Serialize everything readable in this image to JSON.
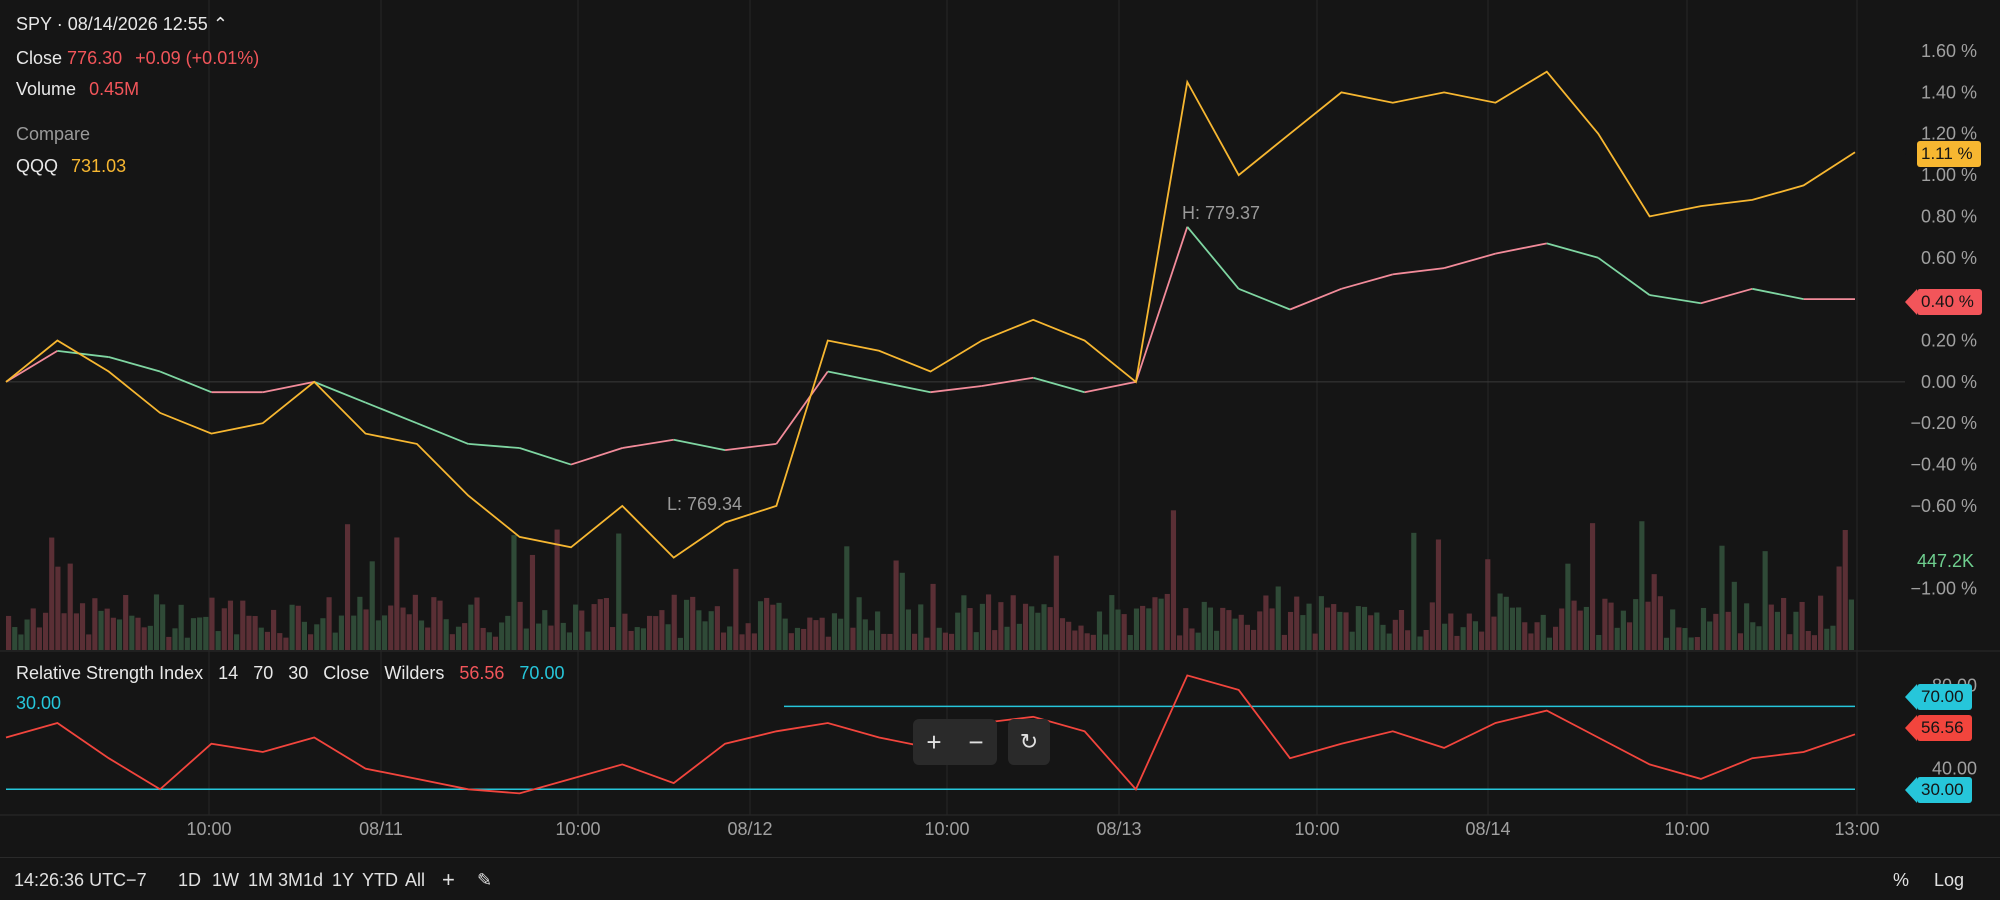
{
  "header": {
    "symbol_line": "SPY · 08/14/2026 12:55 ⌃",
    "close_label": "Close",
    "close_value": "776.30",
    "close_change": "+0.09 (+0.01%)",
    "volume_label": "Volume",
    "volume_value": "0.45M",
    "compare_label": "Compare",
    "compare_symbol": "QQQ",
    "compare_value": "731.03"
  },
  "annotations": {
    "high": "H:  779.37",
    "low": "L:  769.34"
  },
  "rsi": {
    "title": "Relative Strength Index",
    "params": [
      "14",
      "70",
      "30",
      "Close",
      "Wilders"
    ],
    "value": "56.56",
    "upper": "70.00",
    "lower": "30.00",
    "axis_ticks": [
      "80.00",
      "40.00"
    ],
    "tag_value": "56.56",
    "tag_upper": "70.00",
    "tag_lower": "30.00"
  },
  "tags": {
    "qqq_pct": "1.11 %",
    "spy_pct": "0.40 %",
    "volume": "447.2K"
  },
  "controls": {
    "zoom_in": "+",
    "zoom_out": "−",
    "reset": "↻"
  },
  "footer": {
    "time": "14:26:36 UTC−7",
    "ranges": [
      "1D",
      "1W",
      "1M",
      "3M",
      "1d",
      "1Y",
      "YTD",
      "All"
    ],
    "active_range": "1W",
    "add": "+",
    "draw_icon": "✎",
    "pct": "%",
    "log": "Log"
  },
  "colors": {
    "spy_up": "#f28b9a",
    "spy_down": "#7fd6a2",
    "qqq": "#f7b731",
    "rsi": "#f2453d",
    "rsi_band": "#26c6da",
    "vol_up": "#2f4a37",
    "vol_down": "#5a2f35"
  },
  "chart_data": {
    "type": "line",
    "x_labels": [
      "10:00",
      "08/11",
      "10:00",
      "08/12",
      "10:00",
      "08/13",
      "10:00",
      "08/14",
      "10:00",
      "13:00"
    ],
    "y_ticks": [
      "1.60 %",
      "1.40 %",
      "1.20 %",
      "1.00 %",
      "0.80 %",
      "0.60 %",
      "0.40 %",
      "0.20 %",
      "0.00 %",
      "−0.20 %",
      "−0.40 %",
      "−0.60 %",
      "−1.00 %"
    ],
    "ylim": [
      -1.2,
      1.75
    ],
    "series": [
      {
        "name": "SPY",
        "values": [
          0.0,
          0.15,
          0.12,
          0.05,
          -0.05,
          -0.05,
          0.0,
          -0.1,
          -0.2,
          -0.3,
          -0.32,
          -0.4,
          -0.32,
          -0.28,
          -0.33,
          -0.3,
          0.05,
          0.0,
          -0.05,
          -0.02,
          0.02,
          -0.05,
          0.0,
          0.75,
          0.45,
          0.35,
          0.45,
          0.52,
          0.55,
          0.62,
          0.67,
          0.6,
          0.42,
          0.38,
          0.45,
          0.4,
          0.4
        ]
      },
      {
        "name": "QQQ",
        "values": [
          0.0,
          0.2,
          0.05,
          -0.15,
          -0.25,
          -0.2,
          0.0,
          -0.25,
          -0.3,
          -0.55,
          -0.75,
          -0.8,
          -0.6,
          -0.85,
          -0.68,
          -0.6,
          0.2,
          0.15,
          0.05,
          0.2,
          0.3,
          0.2,
          0.0,
          1.45,
          1.0,
          1.2,
          1.4,
          1.35,
          1.4,
          1.35,
          1.5,
          1.2,
          0.8,
          0.85,
          0.88,
          0.95,
          1.11
        ]
      }
    ],
    "rsi_values": [
      55,
      62,
      45,
      30,
      52,
      48,
      55,
      40,
      35,
      30,
      28,
      35,
      42,
      33,
      52,
      58,
      62,
      55,
      50,
      62,
      65,
      58,
      30,
      85,
      78,
      45,
      52,
      58,
      50,
      62,
      68,
      55,
      42,
      35,
      45,
      48,
      56.56
    ],
    "rsi_ylim": [
      20,
      90
    ]
  }
}
